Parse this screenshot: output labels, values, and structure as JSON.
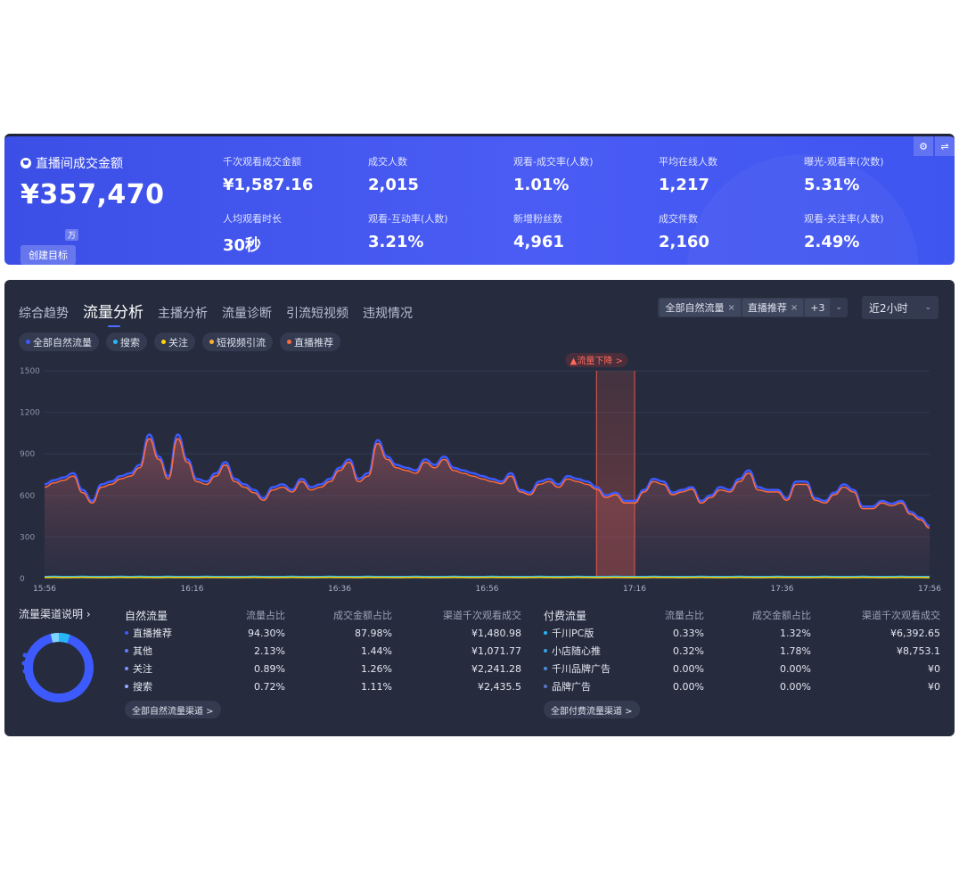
{
  "top": {
    "main_label": "直播间成交金额",
    "main_value": "¥357,470",
    "main_unit": "万",
    "create_goal": "创建目标",
    "kpis": [
      {
        "label": "千次观看成交金额",
        "value": "¥1,587.16"
      },
      {
        "label": "成交人数",
        "value": "2,015"
      },
      {
        "label": "观看-成交率(人数)",
        "value": "1.01%"
      },
      {
        "label": "平均在线人数",
        "value": "1,217"
      },
      {
        "label": "曝光-观看率(次数)",
        "value": "5.31%"
      },
      {
        "label": "人均观看时长",
        "value": "30秒"
      },
      {
        "label": "观看-互动率(人数)",
        "value": "3.21%"
      },
      {
        "label": "新增粉丝数",
        "value": "4,961"
      },
      {
        "label": "成交件数",
        "value": "2,160"
      },
      {
        "label": "观看-关注率(人数)",
        "value": "2.49%"
      }
    ],
    "settings_icon": "gear-icon",
    "switch_icon": "swap-icon"
  },
  "tabs": [
    "综合趋势",
    "流量分析",
    "主播分析",
    "流量诊断",
    "引流短视频",
    "违规情况"
  ],
  "active_tab": 1,
  "filters": {
    "chips": [
      "全部自然流量",
      "直播推荐"
    ],
    "more": "+3",
    "time_range": "近2小时"
  },
  "legend": [
    {
      "label": "全部自然流量",
      "color": "#3d5afe"
    },
    {
      "label": "搜索",
      "color": "#29b6f6"
    },
    {
      "label": "关注",
      "color": "#ffd60a"
    },
    {
      "label": "短视频引流",
      "color": "#ffb02e"
    },
    {
      "label": "直播推荐",
      "color": "#ff6b3d"
    }
  ],
  "chart_data": {
    "type": "area",
    "x_ticks": [
      "15:56",
      "16:16",
      "16:36",
      "16:56",
      "17:16",
      "17:36",
      "17:56"
    ],
    "y_ticks": [
      "0",
      "300",
      "600",
      "900",
      "1200",
      "1500"
    ],
    "ylim": [
      0,
      1500
    ],
    "annotation": "▲流量下降 >",
    "series": [
      {
        "name": "全部自然流量",
        "color": "#3d5afe",
        "values": [
          680,
          710,
          730,
          760,
          640,
          560,
          680,
          700,
          740,
          760,
          820,
          1040,
          880,
          740,
          1040,
          860,
          720,
          700,
          760,
          840,
          720,
          680,
          640,
          580,
          660,
          680,
          640,
          720,
          660,
          680,
          720,
          800,
          860,
          720,
          760,
          1000,
          880,
          820,
          800,
          780,
          860,
          820,
          880,
          800,
          780,
          760,
          740,
          720,
          700,
          760,
          640,
          620,
          700,
          720,
          680,
          740,
          720,
          700,
          660,
          600,
          620,
          560,
          560,
          640,
          720,
          700,
          620,
          640,
          660,
          560,
          600,
          660,
          640,
          720,
          780,
          660,
          640,
          640,
          580,
          700,
          700,
          580,
          560,
          620,
          680,
          640,
          520,
          520,
          560,
          540,
          560,
          480,
          440,
          380
        ]
      },
      {
        "name": "直播推荐",
        "color": "#ff6b3d",
        "values": [
          660,
          690,
          710,
          740,
          620,
          545,
          660,
          680,
          720,
          740,
          800,
          1010,
          860,
          720,
          1010,
          840,
          700,
          680,
          740,
          820,
          700,
          660,
          620,
          565,
          640,
          660,
          625,
          700,
          640,
          660,
          700,
          780,
          840,
          700,
          740,
          975,
          860,
          800,
          780,
          760,
          840,
          800,
          860,
          780,
          760,
          740,
          720,
          700,
          685,
          740,
          625,
          605,
          680,
          700,
          660,
          720,
          700,
          680,
          645,
          585,
          605,
          545,
          545,
          625,
          700,
          680,
          605,
          625,
          645,
          545,
          585,
          640,
          625,
          700,
          760,
          640,
          625,
          625,
          565,
          680,
          680,
          565,
          545,
          605,
          660,
          625,
          505,
          505,
          545,
          525,
          545,
          465,
          425,
          365
        ]
      },
      {
        "name": "搜索",
        "color": "#29b6f6",
        "values": [
          15,
          16,
          14,
          15,
          16,
          15,
          14,
          15,
          16,
          15,
          16,
          15,
          14,
          16,
          15,
          15,
          14,
          16,
          15,
          15,
          14,
          15,
          16,
          15,
          14,
          15,
          16,
          15,
          14,
          15,
          16,
          15,
          15,
          14,
          16,
          15,
          15,
          14,
          15,
          16,
          15,
          14,
          15,
          16,
          15,
          14,
          15,
          16,
          15,
          15,
          14,
          15,
          16,
          15,
          14,
          15,
          16,
          15,
          14,
          15,
          16,
          15,
          15,
          14,
          16,
          15,
          15,
          14,
          15,
          16,
          15,
          14,
          15,
          16,
          15,
          14,
          15,
          16,
          15,
          15,
          14,
          15,
          16,
          15,
          14,
          15,
          16,
          15,
          14,
          15,
          16,
          15,
          15,
          14
        ]
      },
      {
        "name": "关注",
        "color": "#ffd60a",
        "values": [
          8,
          9,
          7,
          8,
          9,
          8,
          7,
          8,
          9,
          8,
          9,
          8,
          7,
          9,
          8,
          8,
          7,
          9,
          8,
          8,
          7,
          8,
          9,
          8,
          7,
          8,
          9,
          8,
          7,
          8,
          9,
          8,
          8,
          7,
          9,
          8,
          8,
          7,
          8,
          9,
          8,
          7,
          8,
          9,
          8,
          7,
          8,
          9,
          8,
          8,
          7,
          8,
          9,
          8,
          7,
          8,
          9,
          8,
          7,
          8,
          9,
          8,
          8,
          7,
          9,
          8,
          8,
          7,
          8,
          9,
          8,
          7,
          8,
          9,
          8,
          7,
          8,
          9,
          8,
          8,
          7,
          8,
          9,
          8,
          7,
          8,
          9,
          8,
          7,
          8,
          9,
          8,
          8,
          7
        ]
      }
    ]
  },
  "bottom": {
    "channel_title": "流量渠道说明",
    "natural": {
      "headers": [
        "自然流量",
        "流量占比",
        "成交金额占比",
        "渠道千次观看成交"
      ],
      "rows": [
        {
          "name": "直播推荐",
          "share": "94.30%",
          "gmv": "87.98%",
          "gpm": "¥1,480.98",
          "color": "#3d5afe"
        },
        {
          "name": "其他",
          "share": "2.13%",
          "gmv": "1.44%",
          "gpm": "¥1,071.77",
          "color": "#5f7cff"
        },
        {
          "name": "关注",
          "share": "0.89%",
          "gmv": "1.26%",
          "gpm": "¥2,241.28",
          "color": "#7e93ff"
        },
        {
          "name": "搜索",
          "share": "0.72%",
          "gmv": "1.11%",
          "gpm": "¥2,435.5",
          "color": "#9aa9ff"
        }
      ],
      "more": "全部自然流量渠道 >"
    },
    "paid": {
      "headers": [
        "付费流量",
        "流量占比",
        "成交金额占比",
        "渠道千次观看成交"
      ],
      "rows": [
        {
          "name": "千川PC版",
          "share": "0.33%",
          "gmv": "1.32%",
          "gpm": "¥6,392.65",
          "color": "#29b6f6"
        },
        {
          "name": "小店随心推",
          "share": "0.32%",
          "gmv": "1.78%",
          "gpm": "¥8,753.1",
          "color": "#3aa0e8"
        },
        {
          "name": "千川品牌广告",
          "share": "0.00%",
          "gmv": "0.00%",
          "gpm": "¥0",
          "color": "#4a8bd8"
        },
        {
          "name": "品牌广告",
          "share": "0.00%",
          "gmv": "0.00%",
          "gpm": "¥0",
          "color": "#5a76c8"
        }
      ],
      "more": "全部付费流量渠道 >"
    }
  }
}
